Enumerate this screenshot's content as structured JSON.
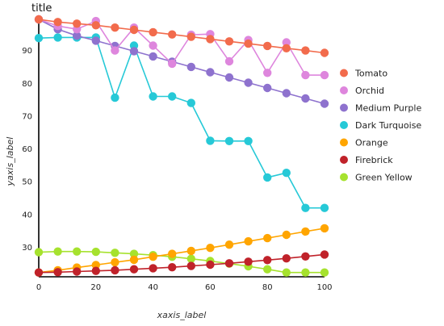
{
  "chart_data": {
    "type": "line",
    "title": "title",
    "xlabel": "xaxis_label",
    "ylabel": "yaxis_label",
    "xlim": [
      0,
      100
    ],
    "ylim": [
      21,
      100
    ],
    "xticks": [
      0,
      20,
      40,
      60,
      80,
      100
    ],
    "yticks": [
      30,
      40,
      50,
      60,
      70,
      80,
      90
    ],
    "grid": false,
    "legend_position": "right",
    "x": [
      0,
      6.67,
      13.33,
      20,
      26.67,
      33.33,
      40,
      46.67,
      53.33,
      60,
      66.67,
      73.33,
      80,
      86.67,
      93.33,
      100
    ],
    "series": [
      {
        "name": "Green Yellow",
        "color": "#A6E22E",
        "values": [
          28.5,
          28.7,
          28.7,
          28.6,
          28.3,
          28.0,
          27.6,
          27.1,
          26.5,
          25.8,
          25.0,
          24.2,
          23.3,
          22.3,
          22.3,
          22.3
        ]
      },
      {
        "name": "Dark Turquoise",
        "color": "#26C9D7",
        "values": [
          93.8,
          94.0,
          94.0,
          94.0,
          75.6,
          91.5,
          76.0,
          76.0,
          74.0,
          62.5,
          62.4,
          62.4,
          51.3,
          52.7,
          42.0,
          42.0
        ]
      },
      {
        "name": "Medium Purple",
        "color": "#8E72CE",
        "values": [
          99.5,
          96.5,
          94.5,
          93.0,
          91.4,
          89.8,
          88.2,
          86.6,
          85.0,
          83.4,
          81.8,
          80.2,
          78.6,
          77.0,
          75.4,
          73.8
        ]
      },
      {
        "name": "Orchid",
        "color": "#DE86DD",
        "values": [
          99.5,
          97.5,
          96.5,
          99.0,
          90.0,
          97.0,
          91.5,
          86.0,
          94.8,
          95.0,
          86.7,
          93.2,
          83.2,
          92.5,
          82.5,
          82.5
        ]
      },
      {
        "name": "Orange",
        "color": "#FFA500",
        "values": [
          22.3,
          23.0,
          23.8,
          24.6,
          25.4,
          26.2,
          27.1,
          28.0,
          28.9,
          29.8,
          30.8,
          31.8,
          32.8,
          33.8,
          34.8,
          35.8
        ]
      },
      {
        "name": "Firebrick",
        "color": "#C0222A",
        "values": [
          22.3,
          22.4,
          22.6,
          22.8,
          23.0,
          23.3,
          23.6,
          23.9,
          24.3,
          24.7,
          25.1,
          25.6,
          26.1,
          26.6,
          27.2,
          27.8
        ]
      },
      {
        "name": "Tomato",
        "color": "#F26B4C",
        "values": [
          99.5,
          98.7,
          98.2,
          97.7,
          97.0,
          96.3,
          95.6,
          94.9,
          94.2,
          93.5,
          92.8,
          92.1,
          91.4,
          90.7,
          90.0,
          89.3
        ]
      }
    ]
  }
}
